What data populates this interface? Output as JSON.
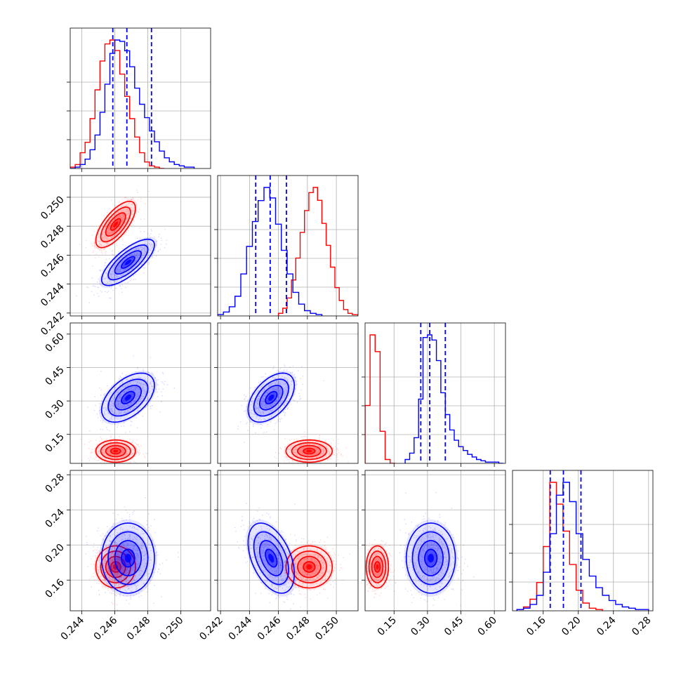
{
  "chart_data": {
    "type": "corner",
    "title": "",
    "parameters": [
      {
        "id": "p1",
        "range": [
          0.2433,
          0.2518
        ],
        "ticks": [
          0.244,
          0.246,
          0.248,
          0.25
        ],
        "tick_labels": [
          "0.244",
          "0.246",
          "0.248",
          "0.250"
        ]
      },
      {
        "id": "p2",
        "range": [
          0.2418,
          0.2515
        ],
        "ticks": [
          0.242,
          0.244,
          0.246,
          0.248,
          0.25
        ],
        "tick_labels": [
          "0.242",
          "0.244",
          "0.246",
          "0.248",
          "0.250"
        ]
      },
      {
        "id": "p3",
        "range": [
          0.02,
          0.65
        ],
        "ticks": [
          0.15,
          0.3,
          0.45,
          0.6
        ],
        "tick_labels": [
          "0.15",
          "0.30",
          "0.45",
          "0.60"
        ]
      },
      {
        "id": "p4",
        "range": [
          0.125,
          0.285
        ],
        "ticks": [
          0.16,
          0.2,
          0.24,
          0.28
        ],
        "tick_labels": [
          "0.16",
          "0.20",
          "0.24",
          "0.28"
        ]
      }
    ],
    "quantile_lines": {
      "color": "#0000ff",
      "p1": [
        0.24588,
        0.24673,
        0.24822
      ],
      "p2": [
        0.24443,
        0.24543,
        0.24655
      ],
      "p3": [
        0.27,
        0.31,
        0.38
      ],
      "p4": [
        0.168,
        0.183,
        0.203
      ]
    },
    "series": [
      {
        "name": "red",
        "color": "#ff0000",
        "means": [
          0.24605,
          0.24812,
          0.075,
          0.175
        ],
        "sds": [
          0.0006,
          0.0008,
          0.025,
          0.012
        ],
        "corr": {
          "0-1": 0.7,
          "0-3": 0.0,
          "1-3": 0.0,
          "2-3": 0.0,
          "0-2": 0.0,
          "1-2": 0.0
        },
        "hist1d": {
          "p1": {
            "edges": [
              0.2433,
              0.2436,
              0.2439,
              0.2442,
              0.2445,
              0.2448,
              0.2451,
              0.2454,
              0.2457,
              0.246,
              0.2463,
              0.2466,
              0.2469,
              0.2472,
              0.2475,
              0.2478,
              0.2481,
              0.2484,
              0.2487,
              0.249
            ],
            "counts": [
              1,
              3,
              12,
              20,
              38,
              60,
              82,
              95,
              98,
              90,
              72,
              55,
              38,
              24,
              12,
              5,
              2,
              1,
              0
            ]
          },
          "p2": {
            "edges": [
              0.246,
              0.2463,
              0.2466,
              0.2469,
              0.2472,
              0.2475,
              0.2478,
              0.2481,
              0.2484,
              0.2487,
              0.249,
              0.2493,
              0.2496,
              0.2499,
              0.2502,
              0.2505,
              0.2508,
              0.2511,
              0.2515
            ],
            "counts": [
              2,
              6,
              14,
              28,
              45,
              65,
              82,
              96,
              100,
              90,
              72,
              55,
              38,
              22,
              12,
              5,
              2,
              1
            ]
          },
          "p3": {
            "edges": [
              0.02,
              0.0425,
              0.065,
              0.0875,
              0.11,
              0.1325,
              0.155
            ],
            "counts": [
              45,
              100,
              87,
              25,
              3,
              0
            ]
          },
          "p4": {
            "edges": [
              0.13,
              0.1375,
              0.145,
              0.1525,
              0.16,
              0.1675,
              0.175,
              0.1825,
              0.19,
              0.1975,
              0.205,
              0.2125,
              0.22,
              0.2275
            ],
            "counts": [
              1,
              3,
              9,
              22,
              50,
              100,
              83,
              62,
              36,
              16,
              6,
              2,
              1
            ]
          }
        }
      },
      {
        "name": "blue",
        "color": "#0000ff",
        "means": [
          0.2468,
          0.2455,
          0.315,
          0.185
        ],
        "sds": [
          0.0008,
          0.0008,
          0.055,
          0.02
        ],
        "corr": {
          "0-1": 0.75,
          "0-2": 0.5,
          "1-2": 0.5,
          "0-3": 0.0,
          "1-3": -0.45,
          "2-3": 0.0
        },
        "hist1d": {
          "p1": {
            "edges": [
              0.2433,
              0.2436,
              0.2439,
              0.2442,
              0.2445,
              0.2448,
              0.2451,
              0.2454,
              0.2457,
              0.246,
              0.2463,
              0.2466,
              0.2469,
              0.2472,
              0.2475,
              0.2478,
              0.2481,
              0.2484,
              0.2487,
              0.249,
              0.2493,
              0.2496,
              0.2499,
              0.2502,
              0.2505,
              0.2508
            ],
            "counts": [
              0,
              1,
              3,
              7,
              14,
              25,
              42,
              63,
              86,
              96,
              95,
              88,
              76,
              60,
              48,
              38,
              28,
              20,
              13,
              8,
              5,
              3,
              2,
              1,
              1
            ]
          },
          "p2": {
            "edges": [
              0.2418,
              0.2422,
              0.2426,
              0.243,
              0.2434,
              0.2438,
              0.2442,
              0.2446,
              0.245,
              0.2454,
              0.2458,
              0.2462,
              0.2466,
              0.247,
              0.2474,
              0.2478,
              0.2482,
              0.2486,
              0.249
            ],
            "counts": [
              1,
              3,
              7,
              15,
              32,
              53,
              72,
              88,
              98,
              90,
              70,
              50,
              32,
              18,
              9,
              4,
              2,
              1
            ]
          },
          "p3": {
            "edges": [
              0.2,
              0.22,
              0.24,
              0.26,
              0.28,
              0.3,
              0.32,
              0.34,
              0.36,
              0.38,
              0.4,
              0.42,
              0.44,
              0.46,
              0.48,
              0.5,
              0.52,
              0.54,
              0.56,
              0.58,
              0.6,
              0.62,
              0.64
            ],
            "counts": [
              3,
              8,
              20,
              50,
              98,
              100,
              96,
              80,
              55,
              38,
              26,
              18,
              13,
              10,
              7,
              5,
              3,
              2,
              1,
              1,
              1,
              0
            ]
          },
          "p4": {
            "edges": [
              0.13,
              0.1375,
              0.145,
              0.1525,
              0.16,
              0.1675,
              0.175,
              0.1825,
              0.19,
              0.1975,
              0.205,
              0.2125,
              0.22,
              0.2275,
              0.235,
              0.2425,
              0.25,
              0.2575,
              0.265,
              0.2725,
              0.28
            ],
            "counts": [
              1,
              2,
              5,
              12,
              30,
              60,
              90,
              100,
              85,
              60,
              40,
              27,
              18,
              12,
              8,
              5,
              3,
              2,
              1,
              1
            ]
          }
        }
      }
    ]
  }
}
